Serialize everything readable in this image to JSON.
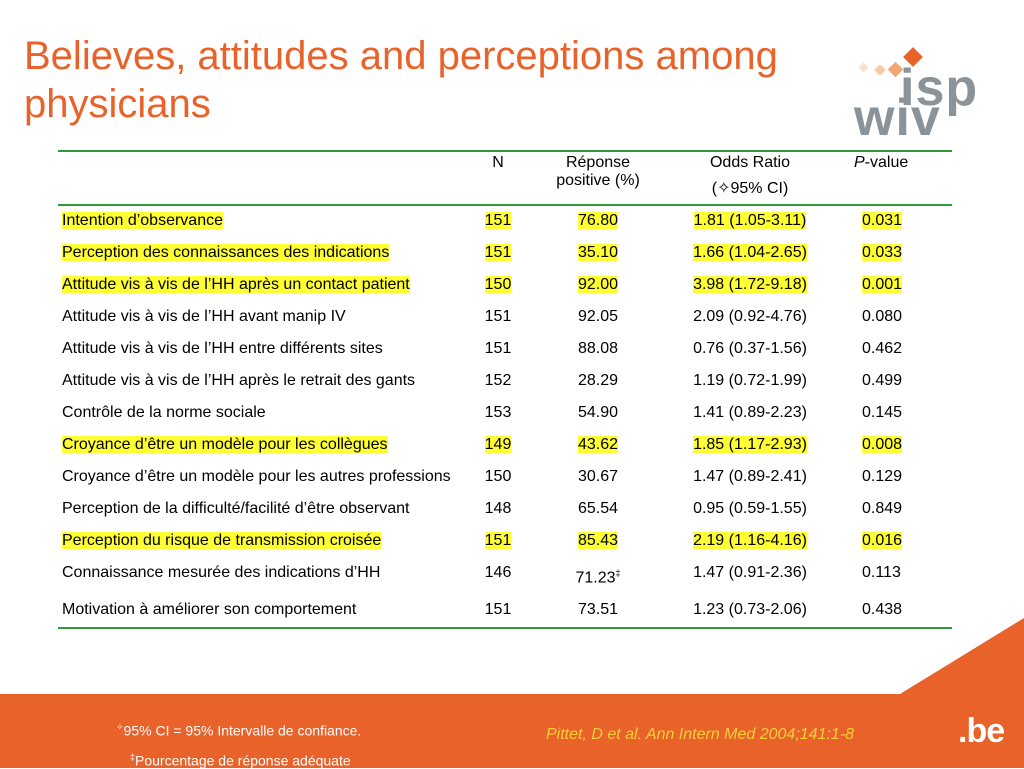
{
  "slide": {
    "title": "Believes, attitudes and perceptions among physicians",
    "logo_top": "isp",
    "logo_bottom": "wiv",
    "brand_mark": ".be",
    "citation": "Pittet, D et al. Ann Intern Med 2004;141:1-8"
  },
  "table": {
    "headers": {
      "n": "N",
      "reponse_line1": "Réponse",
      "reponse_line2": "positive (%)",
      "odds_line1": "Odds Ratio",
      "odds_line2": "(✧95% CI)",
      "p_italic": "P",
      "p_rest": "-value"
    },
    "rows": [
      {
        "label": "Intention d’observance",
        "n": "151",
        "pos": "76.80",
        "or": "1.81 (1.05-3.11)",
        "p": "0.031",
        "highlight": true
      },
      {
        "label": "Perception des connaissances des indications",
        "n": "151",
        "pos": "35.10",
        "or": "1.66 (1.04-2.65)",
        "p": "0.033",
        "highlight": true
      },
      {
        "label": "Attitude vis à vis de l’HH après un contact patient",
        "n": "150",
        "pos": "92.00",
        "or": "3.98 (1.72-9.18)",
        "p": "0.001",
        "highlight": true
      },
      {
        "label": "Attitude vis à vis de l’HH  avant manip IV",
        "n": "151",
        "pos": "92.05",
        "or": "2.09 (0.92-4.76)",
        "p": "0.080",
        "highlight": false
      },
      {
        "label": "Attitude vis à vis de l’HH entre différents sites",
        "n": "151",
        "pos": "88.08",
        "or": "0.76 (0.37-1.56)",
        "p": "0.462",
        "highlight": false
      },
      {
        "label": "Attitude vis à vis de l’HH après le retrait des gants",
        "n": "152",
        "pos": "28.29",
        "or": "1.19 (0.72-1.99)",
        "p": "0.499",
        "highlight": false
      },
      {
        "label": "Contrôle de la norme sociale",
        "n": "153",
        "pos": "54.90",
        "or": "1.41 (0.89-2.23)",
        "p": "0.145",
        "highlight": false
      },
      {
        "label": "Croyance d’être un modèle pour les collègues",
        "n": "149",
        "pos": "43.62",
        "or": "1.85 (1.17-2.93)",
        "p": "0.008",
        "highlight": true
      },
      {
        "label": "Croyance d’être un modèle pour les autres professions",
        "n": "150",
        "pos": "30.67",
        "or": "1.47 (0.89-2.41)",
        "p": "0.129",
        "highlight": false
      },
      {
        "label": "Perception de la difficulté/facilité d’être observant",
        "n": "148",
        "pos": "65.54",
        "or": "0.95 (0.59-1.55)",
        "p": "0.849",
        "highlight": false
      },
      {
        "label": "Perception du risque de transmission croisée",
        "n": "151",
        "pos": "85.43",
        "or": "2.19 (1.16-4.16)",
        "p": "0.016",
        "highlight": true
      },
      {
        "label": "Connaissance mesurée des indications d’HH",
        "n": "146",
        "pos": "71.23",
        "pos_sup": "‡",
        "or": "1.47 (0.91-2.36)",
        "p": "0.113",
        "highlight": false
      },
      {
        "label": "Motivation à améliorer son comportement",
        "n": "151",
        "pos": "73.51",
        "or": "1.23 (0.73-2.06)",
        "p": "0.438",
        "highlight": false
      }
    ]
  },
  "footnotes": {
    "ci_mark": "✧",
    "ci_text": "95% CI = 95% Intervalle de confiance.",
    "pct_mark": "‡",
    "pct_text": "Pourcentage de réponse adéquate"
  },
  "colors": {
    "accent": "#e8622a",
    "rule": "#2e9a3a",
    "highlight": "#ffff33",
    "citation": "#f7d037",
    "logo_gray": "#8a929a"
  }
}
